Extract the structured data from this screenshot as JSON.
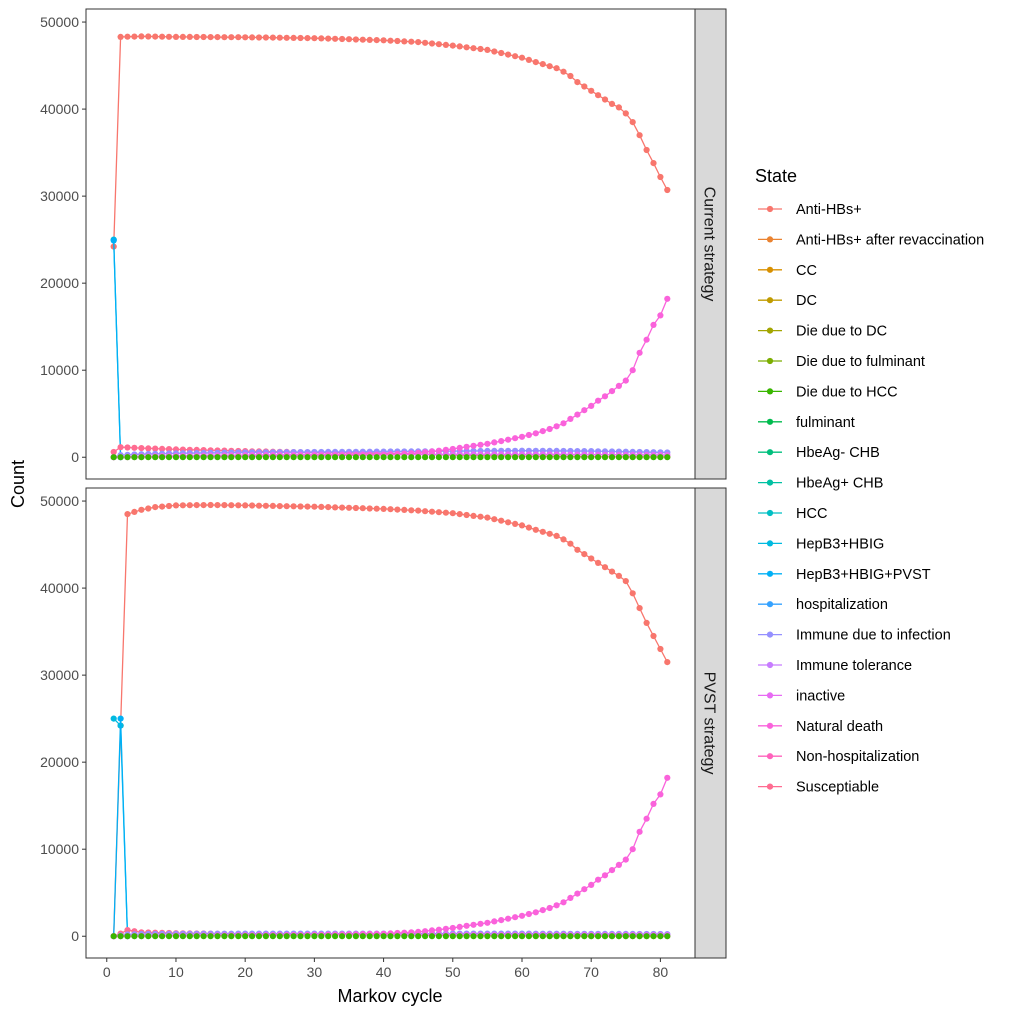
{
  "chart_data": {
    "type": "line",
    "xlabel": "Markov cycle",
    "ylabel": "Count",
    "xlim": [
      -3,
      85
    ],
    "ylim": [
      -2500,
      51500
    ],
    "x_ticks": [
      0,
      10,
      20,
      30,
      40,
      50,
      60,
      70,
      80
    ],
    "y_ticks": [
      0,
      10000,
      20000,
      30000,
      40000,
      50000
    ],
    "x_tick_labels": [
      "0",
      "10",
      "20",
      "30",
      "40",
      "50",
      "60",
      "70",
      "80"
    ],
    "y_tick_labels": [
      "0",
      "10000",
      "20000",
      "30000",
      "40000",
      "50000"
    ],
    "legend_title": "State",
    "legend_placement": "right",
    "states": [
      {
        "name": "Anti-HBs+",
        "color": "#F8766D"
      },
      {
        "name": "Anti-HBs+ after revaccination",
        "color": "#EA8331"
      },
      {
        "name": "CC",
        "color": "#D89000"
      },
      {
        "name": "DC",
        "color": "#C09B00"
      },
      {
        "name": "Die due to DC",
        "color": "#A3A500"
      },
      {
        "name": "Die due to fulminant",
        "color": "#7CAE00"
      },
      {
        "name": "Die due to HCC",
        "color": "#39B600"
      },
      {
        "name": "fulminant",
        "color": "#00BB4E"
      },
      {
        "name": "HbeAg- CHB",
        "color": "#00BF7D"
      },
      {
        "name": "HbeAg+ CHB",
        "color": "#00C1A3"
      },
      {
        "name": "HCC",
        "color": "#00BFC4"
      },
      {
        "name": "HepB3+HBIG",
        "color": "#00BAE0"
      },
      {
        "name": "HepB3+HBIG+PVST",
        "color": "#00B0F6"
      },
      {
        "name": "hospitalization",
        "color": "#35A2FF"
      },
      {
        "name": "Immune due to infection",
        "color": "#9590FF"
      },
      {
        "name": "Immune tolerance",
        "color": "#C77CFF"
      },
      {
        "name": "inactive",
        "color": "#E76BF3"
      },
      {
        "name": "Natural death",
        "color": "#FA62DB"
      },
      {
        "name": "Non-hospitalization",
        "color": "#FF62BC"
      },
      {
        "name": "Susceptiable",
        "color": "#FF6C91"
      }
    ],
    "panels": [
      {
        "strip": "Current strategy",
        "series": [
          {
            "name": "Anti-HBs+",
            "x": [
              1,
              2,
              5,
              10,
              20,
              30,
              40,
              45,
              50,
              55,
              60,
              62,
              65,
              66,
              67,
              68,
              69,
              70,
              71,
              72,
              73,
              74,
              75,
              76,
              77,
              78,
              79,
              80,
              81
            ],
            "y": [
              24200,
              48300,
              48350,
              48300,
              48250,
              48150,
              47900,
              47700,
              47300,
              46800,
              45900,
              45400,
              44700,
              44300,
              43800,
              43100,
              42600,
              42100,
              41600,
              41100,
              40600,
              40200,
              39500,
              38500,
              37000,
              35300,
              33800,
              32200,
              30700
            ]
          },
          {
            "name": "HepB3+HBIG",
            "x": [
              1,
              2
            ],
            "y": [
              25000,
              0
            ]
          },
          {
            "name": "HepB3+HBIG+PVST",
            "x": [
              1,
              2
            ],
            "y": [
              24900,
              0
            ]
          },
          {
            "name": "Susceptiable",
            "x": [
              1,
              2,
              5,
              10,
              20,
              30,
              40,
              50,
              60,
              70,
              81
            ],
            "y": [
              600,
              1150,
              1050,
              900,
              700,
              550,
              450,
              250,
              120,
              60,
              30
            ]
          },
          {
            "name": "Immune due to infection",
            "x": [
              1,
              2,
              5,
              10,
              20,
              30,
              40,
              50,
              60,
              70,
              81
            ],
            "y": [
              0,
              250,
              350,
              450,
              550,
              600,
              650,
              700,
              750,
              700,
              550
            ]
          },
          {
            "name": "inactive",
            "x": [
              1,
              5,
              10,
              20,
              30,
              40,
              50,
              60,
              70,
              81
            ],
            "y": [
              0,
              100,
              150,
              250,
              300,
              320,
              330,
              320,
              300,
              250
            ]
          },
          {
            "name": "Natural death",
            "x": [
              1,
              5,
              10,
              20,
              30,
              40,
              45,
              48,
              50,
              52,
              55,
              57,
              60,
              62,
              63,
              64,
              65,
              66,
              67,
              68,
              69,
              70,
              71,
              72,
              73,
              74,
              75,
              76,
              77,
              78,
              79,
              80,
              81
            ],
            "y": [
              0,
              20,
              40,
              80,
              150,
              280,
              500,
              750,
              950,
              1200,
              1550,
              1850,
              2350,
              2750,
              3000,
              3250,
              3550,
              3900,
              4400,
              4900,
              5400,
              5900,
              6500,
              7000,
              7600,
              8200,
              8800,
              10000,
              12000,
              13500,
              15200,
              16300,
              18200
            ]
          }
        ]
      },
      {
        "strip": "PVST strategy",
        "series": [
          {
            "name": "Anti-HBs+",
            "x": [
              1,
              2,
              3,
              5,
              7,
              10,
              15,
              20,
              30,
              40,
              45,
              50,
              55,
              60,
              62,
              65,
              66,
              67,
              68,
              69,
              70,
              71,
              72,
              73,
              74,
              75,
              76,
              77,
              78,
              79,
              80,
              81
            ],
            "y": [
              0,
              24200,
              48500,
              49000,
              49300,
              49500,
              49550,
              49500,
              49350,
              49100,
              48900,
              48600,
              48100,
              47200,
              46700,
              46000,
              45600,
              45100,
              44400,
              43900,
              43400,
              42900,
              42400,
              41900,
              41400,
              40800,
              39400,
              37700,
              36000,
              34500,
              33000,
              31500
            ]
          },
          {
            "name": "HepB3+HBIG",
            "x": [
              1,
              2,
              3
            ],
            "y": [
              25000,
              24200,
              0
            ]
          },
          {
            "name": "HepB3+HBIG+PVST",
            "x": [
              1,
              2,
              3
            ],
            "y": [
              0,
              25000,
              0
            ]
          },
          {
            "name": "Susceptiable",
            "x": [
              1,
              2,
              3,
              5,
              10,
              20,
              30,
              40,
              50,
              60,
              70,
              81
            ],
            "y": [
              0,
              300,
              700,
              450,
              350,
              250,
              180,
              130,
              80,
              40,
              20,
              10
            ]
          },
          {
            "name": "Immune due to infection",
            "x": [
              1,
              2,
              3,
              5,
              10,
              20,
              30,
              40,
              50,
              60,
              70,
              81
            ],
            "y": [
              0,
              100,
              200,
              250,
              280,
              300,
              300,
              300,
              300,
              300,
              280,
              250
            ]
          },
          {
            "name": "inactive",
            "x": [
              1,
              5,
              10,
              20,
              30,
              40,
              50,
              60,
              70,
              81
            ],
            "y": [
              0,
              50,
              80,
              120,
              150,
              160,
              170,
              160,
              150,
              130
            ]
          },
          {
            "name": "Natural death",
            "x": [
              1,
              5,
              10,
              20,
              30,
              40,
              45,
              48,
              50,
              52,
              55,
              57,
              60,
              62,
              63,
              64,
              65,
              66,
              67,
              68,
              69,
              70,
              71,
              72,
              73,
              74,
              75,
              76,
              77,
              78,
              79,
              80,
              81
            ],
            "y": [
              0,
              20,
              40,
              80,
              150,
              280,
              500,
              750,
              950,
              1200,
              1550,
              1850,
              2350,
              2750,
              3000,
              3250,
              3550,
              3900,
              4400,
              4900,
              5400,
              5900,
              6500,
              7000,
              7600,
              8200,
              8800,
              10000,
              12000,
              13500,
              15200,
              16300,
              18200
            ]
          }
        ]
      }
    ]
  }
}
